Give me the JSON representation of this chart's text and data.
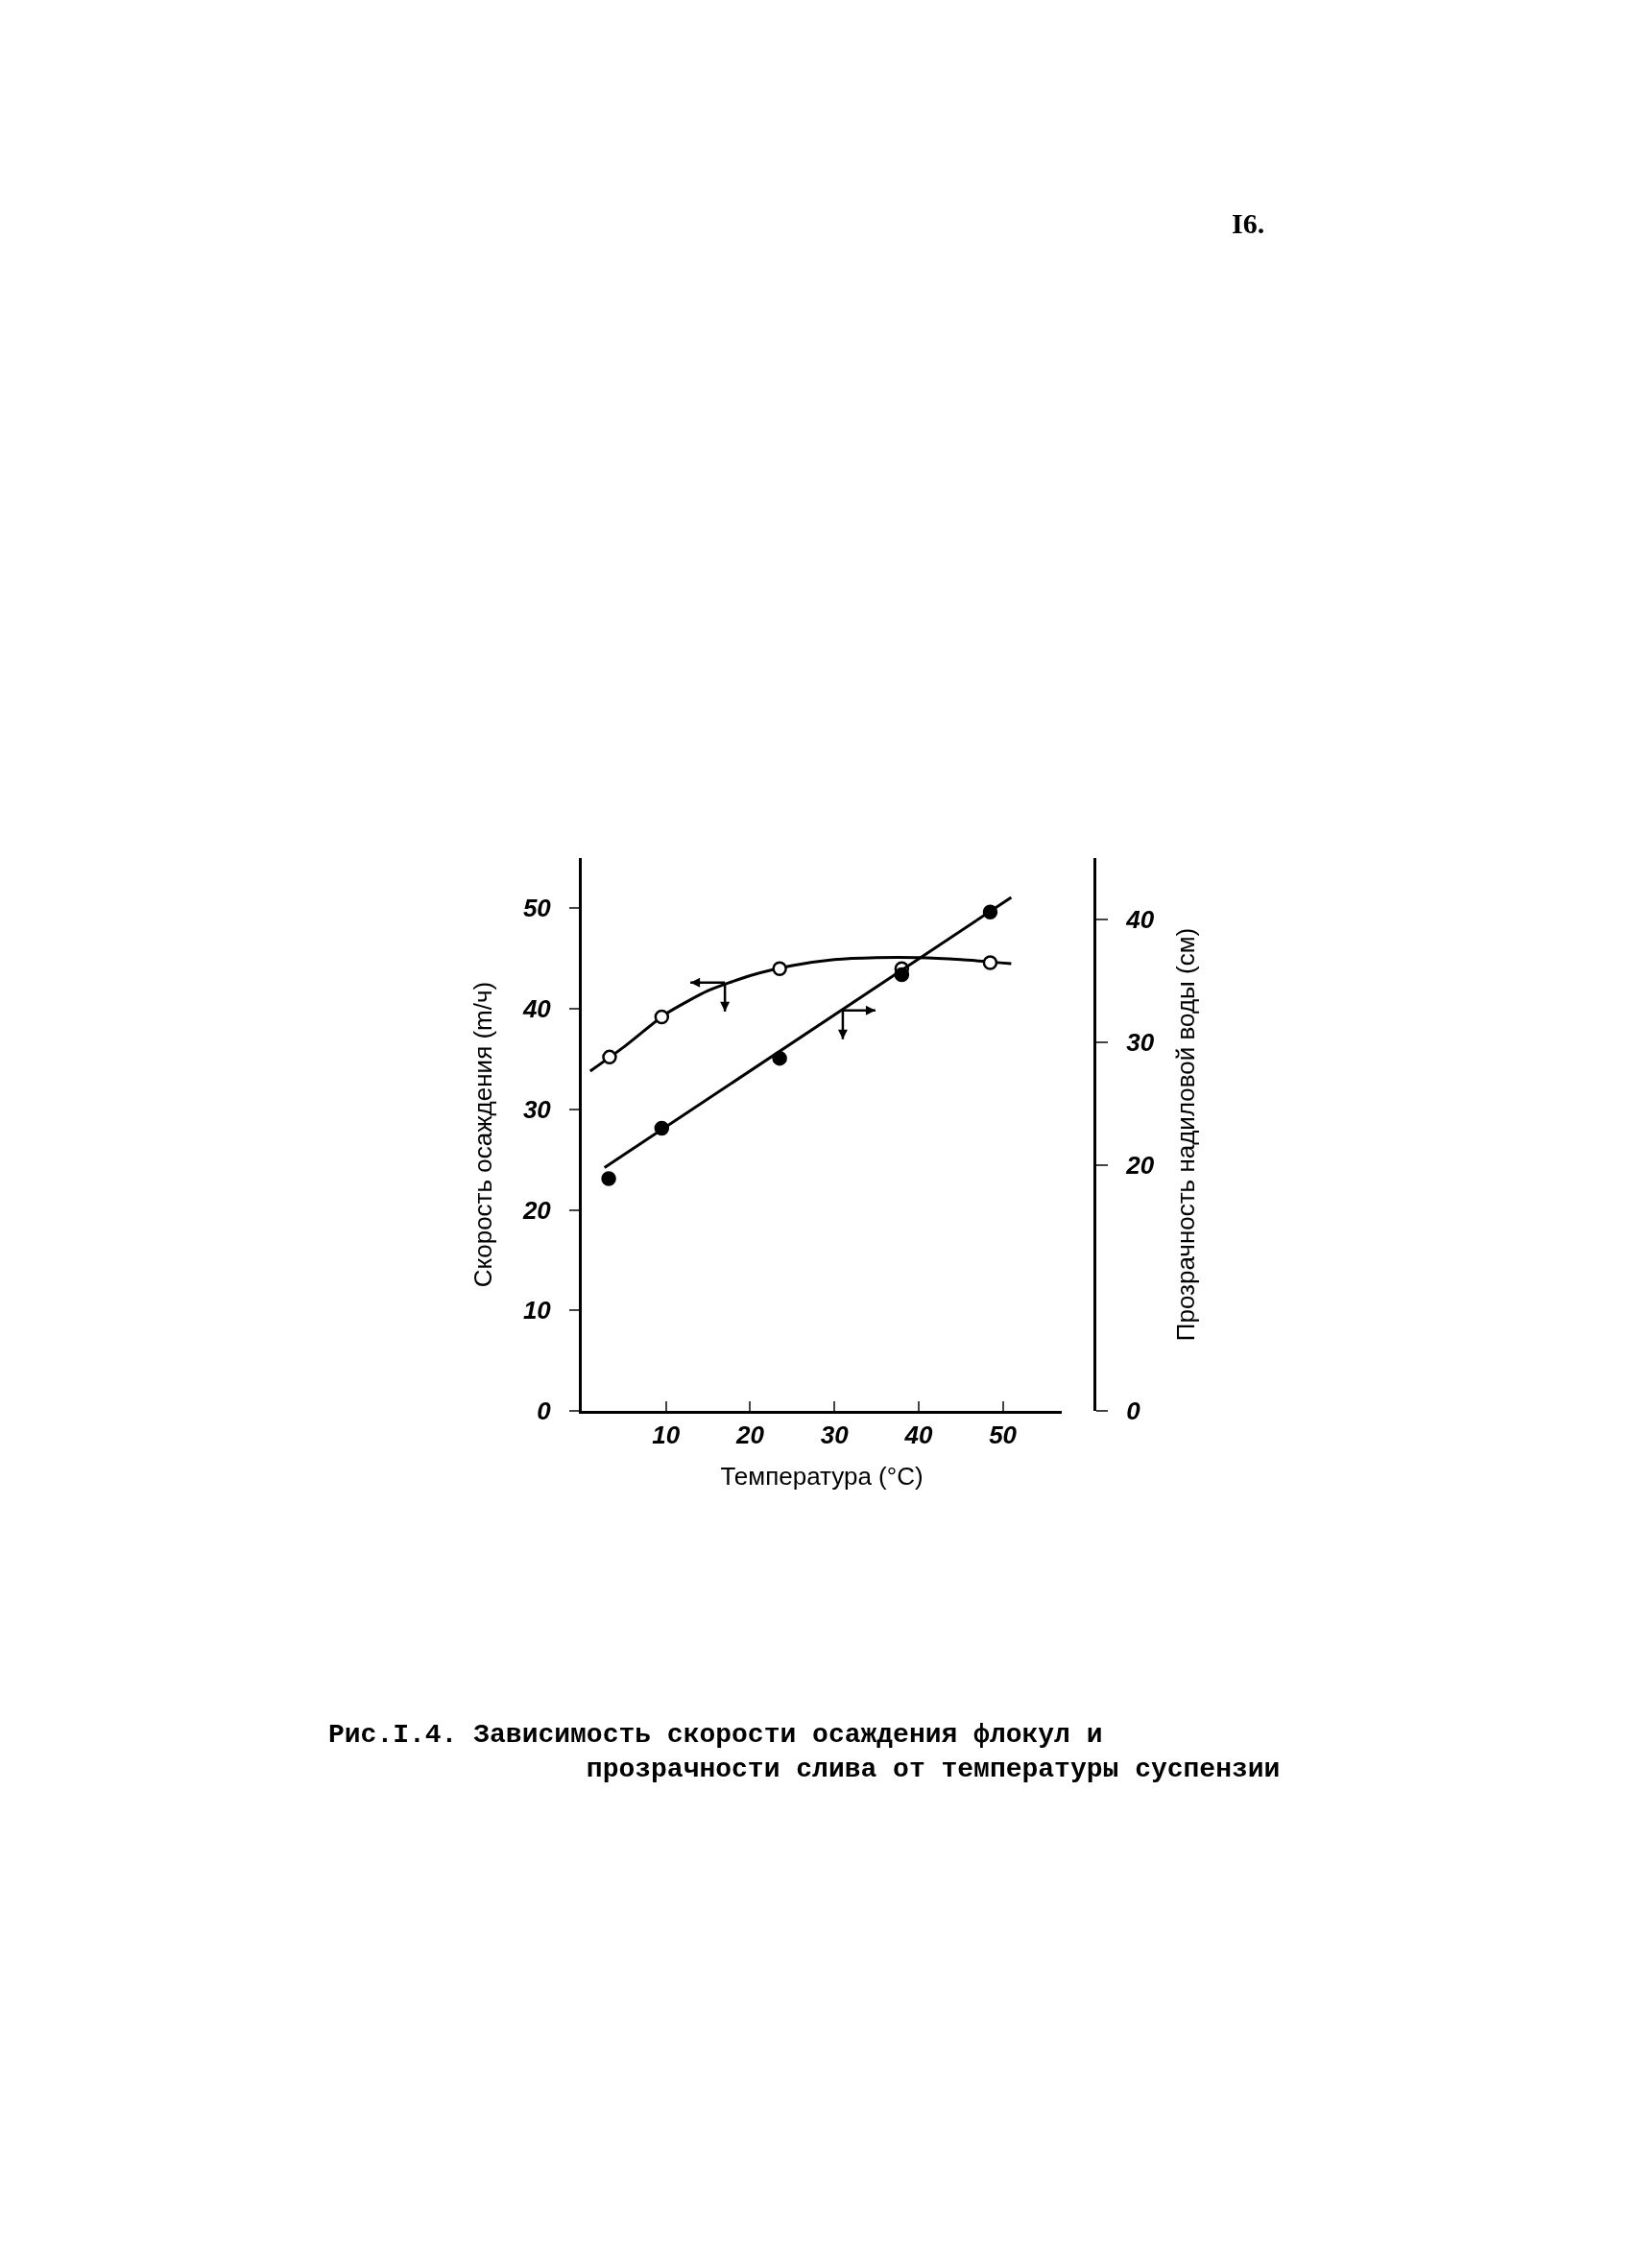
{
  "chart_data": {
    "type": "scatter",
    "xlabel": "Температура (°C)",
    "ylabel": "Скорость осаждения (m/ч)",
    "y2label": "Прозрачность надиловой воды (см)",
    "xlim": [
      0,
      57
    ],
    "xticks": [
      10,
      20,
      30,
      40,
      50
    ],
    "ylim": [
      0,
      55
    ],
    "yticks": [
      0,
      10,
      20,
      30,
      40,
      50
    ],
    "y2lim": [
      0,
      45
    ],
    "y2ticks": [
      0,
      20,
      30,
      40
    ],
    "grid": false,
    "series": [
      {
        "marker": "circle",
        "color": "#ffffff",
        "x": [
          3.3,
          9.5,
          23.5,
          38,
          48.5
        ],
        "values": [
          35.2,
          39.2,
          44,
          44,
          44.6
        ]
      },
      {
        "type": "line",
        "marker": "none",
        "color": "#000000",
        "x": [
          1,
          5,
          10,
          15,
          20,
          25,
          30,
          35,
          40,
          45,
          51
        ],
        "values": [
          33.8,
          36.2,
          39.5,
          41.8,
          43.3,
          44.3,
          44.9,
          45.1,
          45.1,
          44.9,
          44.5
        ]
      },
      {
        "marker": "circle",
        "color": "#000000",
        "axis": "y2",
        "x": [
          3.2,
          9.5,
          23.5,
          38,
          48.5
        ],
        "values": [
          18.9,
          23,
          28.7,
          35.5,
          40.6
        ]
      },
      {
        "type": "line",
        "marker": "none",
        "color": "#000000",
        "axis": "y2",
        "x": [
          2.7,
          51
        ],
        "values": [
          19.8,
          41.8
        ]
      }
    ],
    "annotations": [
      "I6.",
      "Рис.I.4. Зависимость скорости осаждения флокул и\nпрозрачности слива от температуры суспензии"
    ]
  }
}
